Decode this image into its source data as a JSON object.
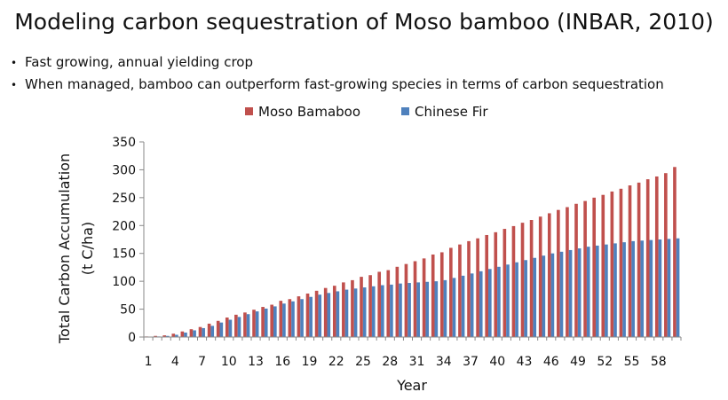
{
  "slide": {
    "title": "Modeling carbon sequestration of Moso bamboo (INBAR, 2010)",
    "bullets": [
      "Fast growing, annual yielding crop",
      "When managed, bamboo can outperform fast-growing species in terms of carbon sequestration"
    ]
  },
  "chart_data": {
    "type": "bar",
    "xlabel": "Year",
    "ylabel": [
      "Total Carbon Accumulation",
      "(t C/ha)"
    ],
    "ylim": [
      0,
      350
    ],
    "yticks": [
      0,
      50,
      100,
      150,
      200,
      250,
      300,
      350
    ],
    "xticks": [
      1,
      4,
      7,
      10,
      13,
      16,
      19,
      22,
      25,
      28,
      31,
      34,
      37,
      40,
      43,
      46,
      49,
      52,
      55,
      58
    ],
    "grid": false,
    "legend_position": "top",
    "x": [
      1,
      2,
      3,
      4,
      5,
      6,
      7,
      8,
      9,
      10,
      11,
      12,
      13,
      14,
      15,
      16,
      17,
      18,
      19,
      20,
      21,
      22,
      23,
      24,
      25,
      26,
      27,
      28,
      29,
      30,
      31,
      32,
      33,
      34,
      35,
      36,
      37,
      38,
      39,
      40,
      41,
      42,
      43,
      44,
      45,
      46,
      47,
      48,
      49,
      50,
      51,
      52,
      53,
      54,
      55,
      56,
      57,
      58,
      59,
      60
    ],
    "series": [
      {
        "name": "Moso Bamaboo",
        "color": "#c0504d",
        "values": [
          1,
          2,
          3,
          6,
          10,
          14,
          18,
          24,
          29,
          35,
          40,
          44,
          49,
          54,
          58,
          65,
          68,
          73,
          78,
          83,
          88,
          92,
          98,
          102,
          108,
          111,
          117,
          120,
          126,
          131,
          136,
          141,
          148,
          152,
          160,
          166,
          172,
          177,
          183,
          188,
          194,
          199,
          205,
          210,
          216,
          222,
          228,
          233,
          239,
          244,
          250,
          255,
          261,
          266,
          272,
          277,
          283,
          288,
          294,
          305
        ]
      },
      {
        "name": "Chinese Fir",
        "color": "#4f81bd",
        "values": [
          0,
          1,
          2,
          4,
          8,
          12,
          16,
          20,
          26,
          31,
          36,
          41,
          46,
          51,
          55,
          60,
          64,
          68,
          72,
          76,
          79,
          82,
          85,
          87,
          89,
          91,
          93,
          94,
          96,
          97,
          98,
          99,
          100,
          102,
          106,
          110,
          114,
          118,
          122,
          126,
          130,
          134,
          138,
          142,
          146,
          150,
          153,
          156,
          159,
          162,
          164,
          166,
          168,
          170,
          172,
          173,
          174,
          175,
          176,
          177
        ]
      }
    ]
  }
}
